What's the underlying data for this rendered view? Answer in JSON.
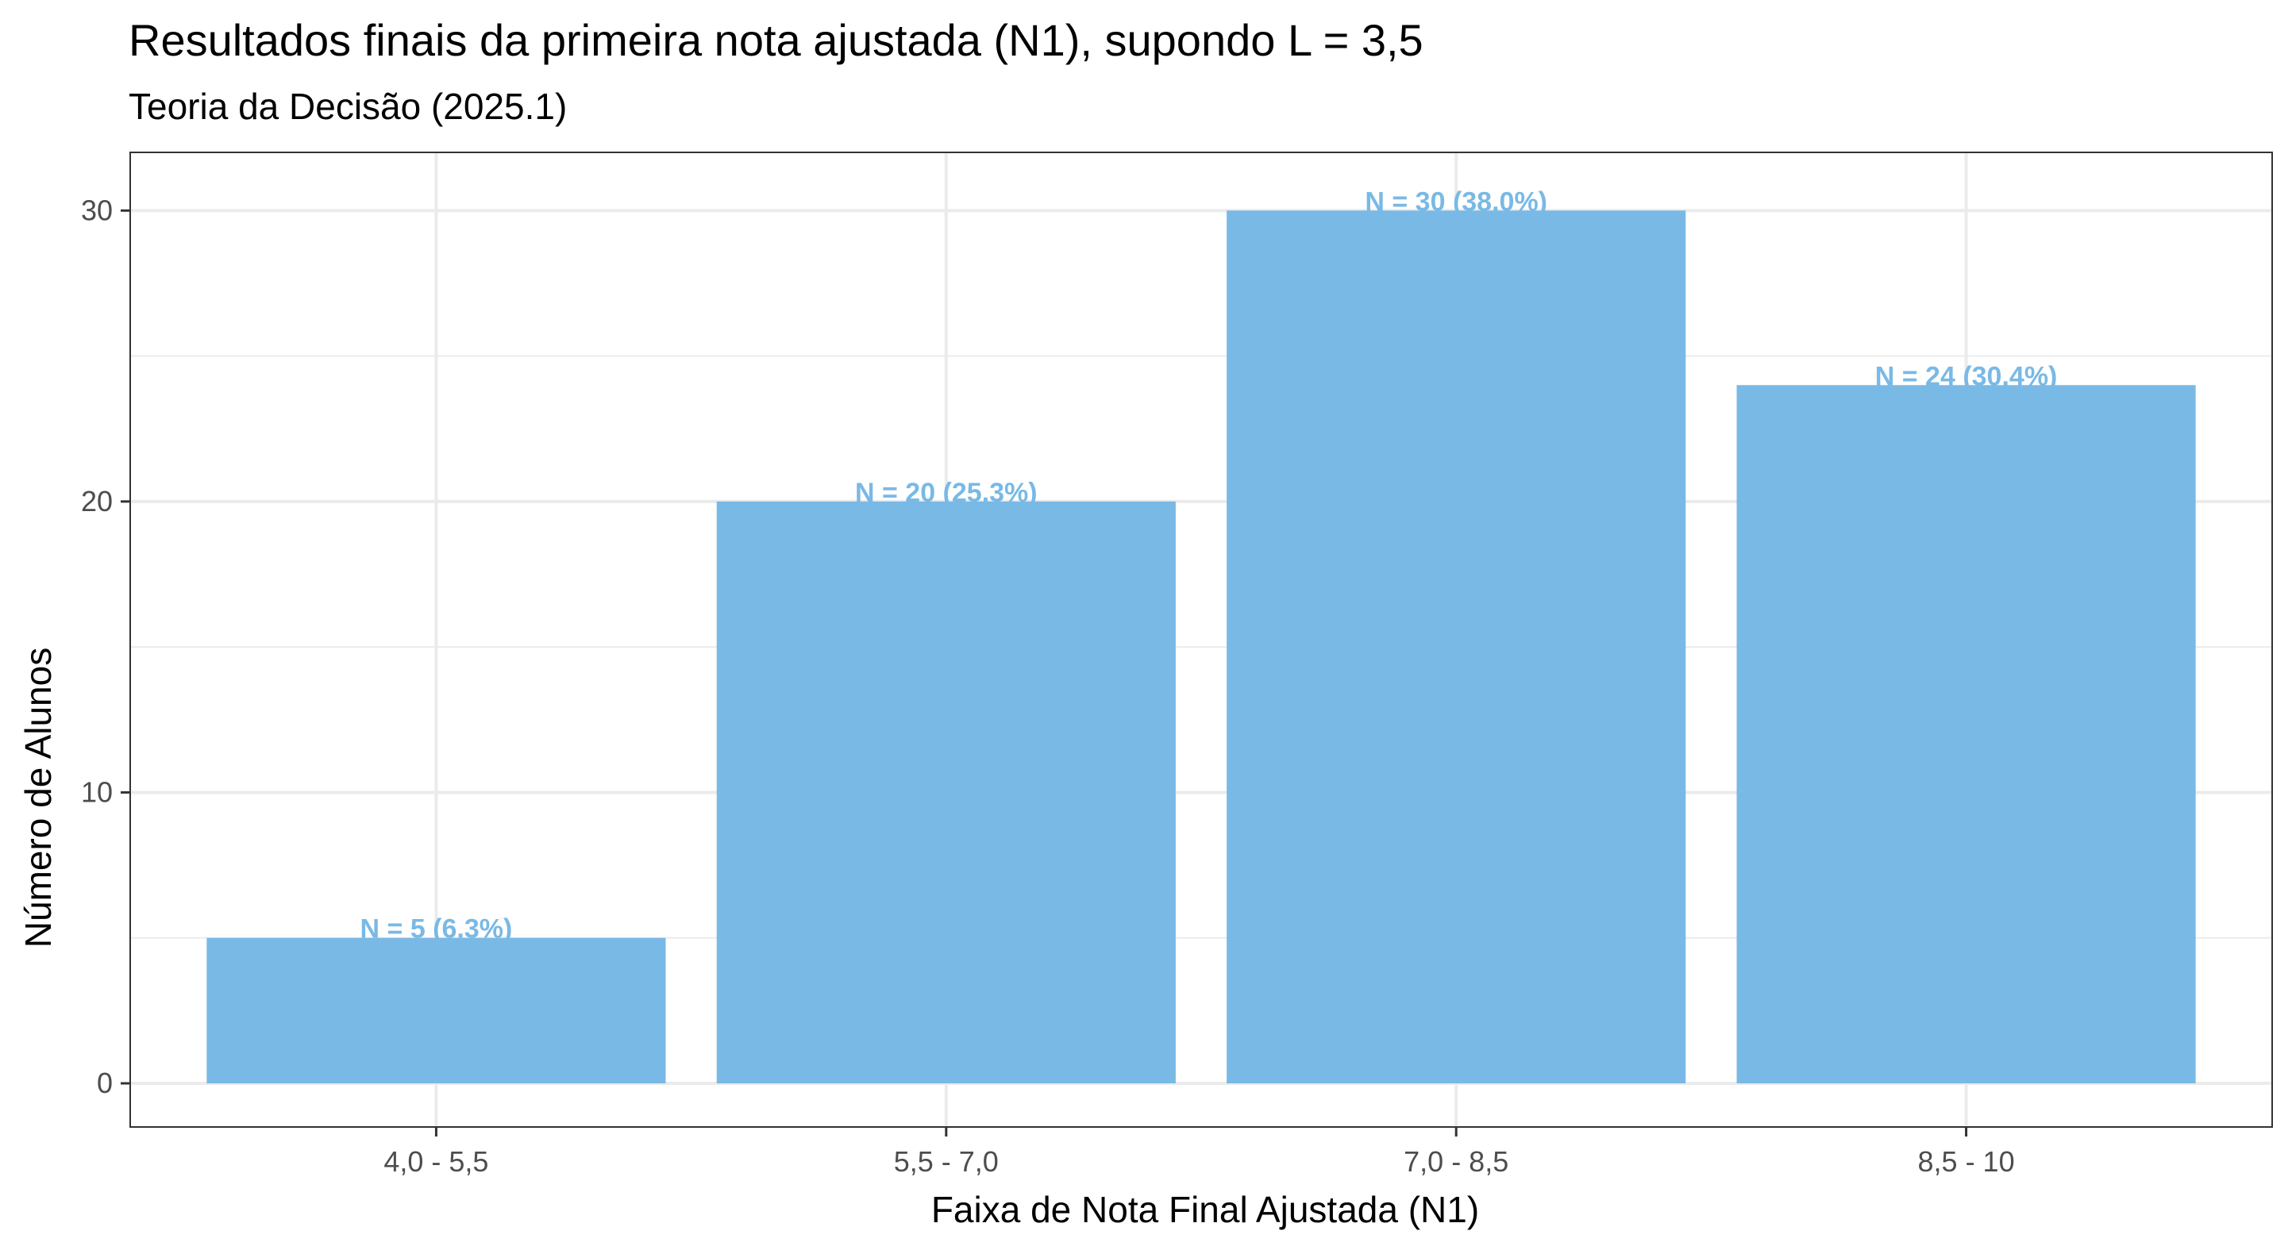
{
  "chart_data": {
    "type": "bar",
    "title": "Resultados finais da primeira nota ajustada (N1), supondo L = 3,5",
    "subtitle": "Teoria da Decisão (2025.1)",
    "xlabel": "Faixa de Nota Final Ajustada (N1)",
    "ylabel": "Número de Alunos",
    "categories": [
      "4,0 - 5,5",
      "5,5 - 7,0",
      "7,0 - 8,5",
      "8,5 - 10"
    ],
    "values": [
      5,
      20,
      30,
      24
    ],
    "data_labels": [
      "N = 5 (6.3%)",
      "N = 20 (25.3%)",
      "N = 30 (38.0%)",
      "N = 24 (30.4%)"
    ],
    "ylim": [
      -1.5,
      32
    ],
    "yticks": [
      0,
      10,
      20,
      30
    ],
    "ytick_labels": [
      "0",
      "10",
      "20",
      "30"
    ],
    "grid": true,
    "legend": "none",
    "colors": {
      "bar": "#79b9e5",
      "label": "#79b9e5",
      "grid": "#ebebeb",
      "panel_border": "#333333"
    }
  }
}
